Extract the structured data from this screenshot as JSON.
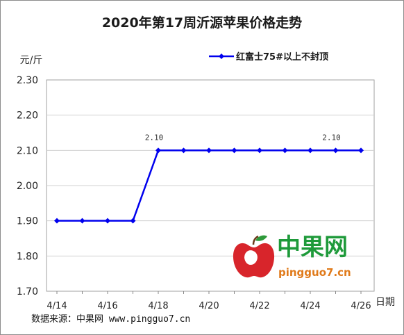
{
  "chart_data": {
    "type": "line",
    "title": "2020年第17周沂源苹果价格走势",
    "ylabel": "元/斤",
    "xlabel": "日期",
    "ylim": [
      1.7,
      2.3
    ],
    "yticks": [
      "2.30",
      "2.20",
      "2.10",
      "2.00",
      "1.90",
      "1.80",
      "1.70"
    ],
    "xtick_labels": [
      "4/14",
      "4/16",
      "4/18",
      "4/20",
      "4/22",
      "4/24",
      "4/26"
    ],
    "grid": true,
    "legend_position": "top-right",
    "series": [
      {
        "name": "红富士75#以上不封顶",
        "color": "#0000ee",
        "values": [
          1.9,
          1.9,
          1.9,
          1.9,
          2.1,
          2.1,
          2.1,
          2.1,
          2.1,
          2.1,
          2.1,
          2.1,
          2.1
        ]
      }
    ],
    "annotations": [
      {
        "index": 4,
        "text": "2.10"
      },
      {
        "index": 11,
        "text": "2.10"
      }
    ]
  },
  "source_text": "数据来源：中果网 www.pingguo7.cn",
  "watermark": {
    "text": "中果网",
    "url": "pingguo7.cn"
  }
}
